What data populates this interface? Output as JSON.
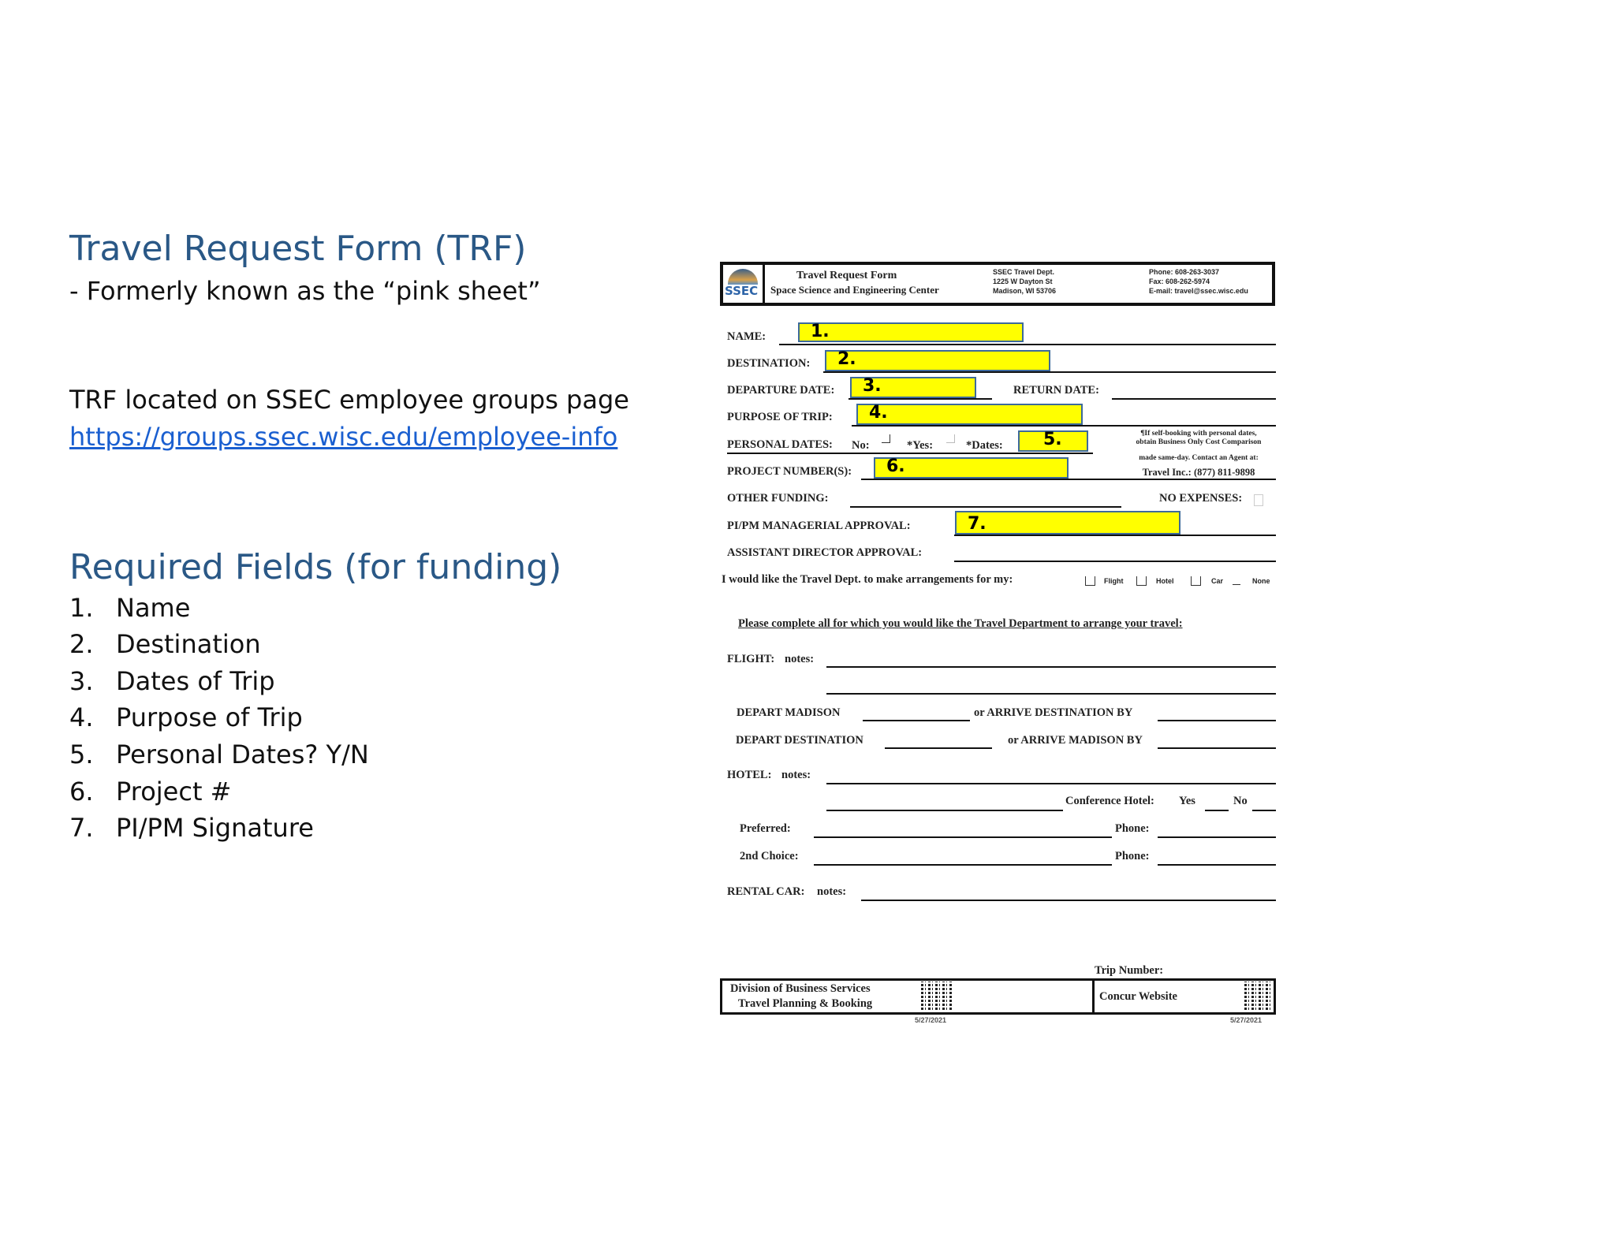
{
  "left": {
    "title": "Travel Request Form (TRF)",
    "subtitle": " - Formerly known as the “pink sheet”",
    "location_text": "TRF located on SSEC employee groups page",
    "link": "https://groups.ssec.wisc.edu/employee-info",
    "required_title": "Required Fields (for funding)",
    "required_items": [
      {
        "num": "1.",
        "label": "Name"
      },
      {
        "num": "2.",
        "label": "Destination"
      },
      {
        "num": "3.",
        "label": "Dates of Trip"
      },
      {
        "num": "4.",
        "label": "Purpose of Trip"
      },
      {
        "num": "5.",
        "label": "Personal Dates? Y/N"
      },
      {
        "num": "6.",
        "label": "Project #"
      },
      {
        "num": "7.",
        "label": "PI/PM Signature"
      }
    ]
  },
  "form": {
    "header": {
      "logo_text": "SSEC",
      "title": "Travel Request Form",
      "org": "Space Science and Engineering Center",
      "dept": "SSEC Travel Dept.",
      "street": "1225 W Dayton St",
      "city": "Madison, WI 53706",
      "phone": "Phone: 608-263-3037",
      "fax": "Fax: 608-262-5974",
      "email": "E-mail: travel@ssec.wisc.edu"
    },
    "labels": {
      "name": "NAME:",
      "destination": "DESTINATION:",
      "departure": "DEPARTURE DATE:",
      "return": "RETURN DATE:",
      "purpose": "PURPOSE OF TRIP:",
      "personal": "PERSONAL DATES:",
      "no": "No:",
      "yes": "*Yes:",
      "dates": "*Dates:",
      "project": "PROJECT NUMBER(S):",
      "other_funding": "OTHER FUNDING:",
      "no_expenses": "NO EXPENSES:",
      "pipm": "PI/PM MANAGERIAL APPROVAL:",
      "assistant": "ASSISTANT DIRECTOR APPROVAL:",
      "arrangements": "I would like the Travel Dept. to make arrangements for my:",
      "opt_flight": "Flight",
      "opt_hotel": "Hotel",
      "opt_car": "Car",
      "opt_none": "None",
      "please": "Please complete all for which you would like the Travel Department to arrange your travel:",
      "flight": "FLIGHT:",
      "notes": "notes:",
      "depart_madison": "DEPART MADISON",
      "or_arrive_dest": "or  ARRIVE DESTINATION BY",
      "depart_dest": "DEPART DESTINATION",
      "or_arrive_madison": "or  ARRIVE MADISON BY",
      "hotel": "HOTEL:",
      "conference_hotel": "Conference Hotel:",
      "yes2": "Yes",
      "no2": "No",
      "preferred": "Preferred:",
      "phone": "Phone:",
      "second_choice": "2nd Choice:",
      "rental_car": "RENTAL CAR:",
      "trip_number": "Trip Number:"
    },
    "note": [
      "¶If self-booking with personal dates,",
      "obtain Business Only Cost Comparison",
      "made same-day. Contact an Agent at:",
      "Travel Inc.: (877) 811-9898"
    ],
    "highlights": [
      "1.",
      "2.",
      "3.",
      "4.",
      "5.",
      "6.",
      "7."
    ],
    "footer": {
      "division": "Division of Business Services",
      "planning": "Travel Planning & Booking",
      "concur": "Concur Website",
      "date_left": "5/27/2021",
      "date_right": "5/27/2021"
    },
    "highlight_color": "#ffff00"
  }
}
